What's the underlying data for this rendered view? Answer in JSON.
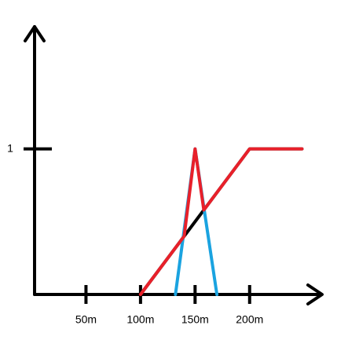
{
  "chart_data": {
    "type": "line",
    "series": [
      {
        "color": "#000000",
        "x": [
          100,
          200,
          248
        ],
        "values": [
          0,
          1,
          1
        ]
      },
      {
        "color": "#1aa3e0",
        "x": [
          132,
          150,
          170
        ],
        "values": [
          0,
          1,
          0
        ]
      },
      {
        "color": "#e8202a",
        "x": [
          100,
          140,
          150,
          158,
          200,
          248
        ],
        "values": [
          0,
          0.4,
          1,
          0.58,
          1,
          1
        ]
      }
    ],
    "xlim": [
      0,
      270
    ],
    "ylim": [
      0,
      1.85
    ],
    "xticks": [
      {
        "value": 50,
        "label": "50m"
      },
      {
        "value": 100,
        "label": "100m"
      },
      {
        "value": 150,
        "label": "150m"
      },
      {
        "value": 200,
        "label": "200m"
      }
    ],
    "yticks": [
      1
    ]
  }
}
